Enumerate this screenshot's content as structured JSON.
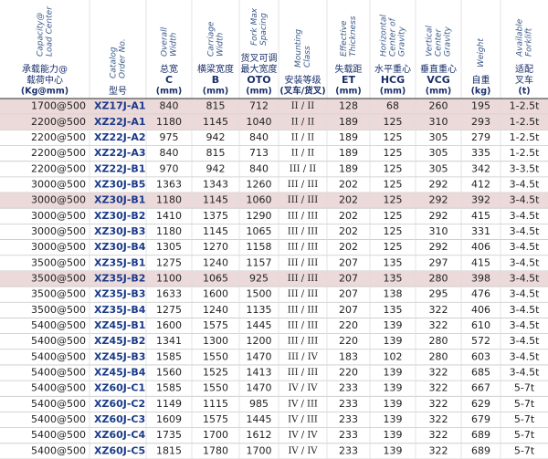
{
  "table": {
    "columns": [
      {
        "english": [
          "Capacity@",
          "Load Center"
        ],
        "chinese": [
          "承载能力@",
          "载荷中心"
        ],
        "unit": "(Kg@mm)"
      },
      {
        "english": [
          "Catalog",
          "Order No."
        ],
        "chinese": [
          "型号"
        ]
      },
      {
        "english": [
          "Overall",
          "Width"
        ],
        "chinese": [
          "总宽"
        ],
        "code": "C",
        "unit": "(mm)"
      },
      {
        "english": [
          "Carriage",
          "Width"
        ],
        "chinese": [
          "横梁宽度"
        ],
        "code": "B",
        "unit": "(mm)"
      },
      {
        "english": [
          "Fork Max",
          "Spacing"
        ],
        "chinese": [
          "货叉可调",
          "最大宽度"
        ],
        "code": "OTO",
        "unit": "(mm)"
      },
      {
        "english": [
          "Mounting",
          "Class"
        ],
        "chinese": [
          "安装等级"
        ],
        "unit": "(叉车/货叉)"
      },
      {
        "english": [
          "Effective",
          "Thickness"
        ],
        "chinese": [
          "失载距"
        ],
        "code": "ET",
        "unit": "(mm)"
      },
      {
        "english": [
          "Horizontal",
          "Center of",
          "Gravity"
        ],
        "chinese": [
          "水平重心"
        ],
        "code": "HCG",
        "unit": "(mm)"
      },
      {
        "english": [
          "Vertical",
          "Center",
          "Gravity"
        ],
        "chinese": [
          "垂直重心"
        ],
        "code": "VCG",
        "unit": "(mm)"
      },
      {
        "english": [
          "Weight"
        ],
        "chinese": [
          "自重"
        ],
        "unit": "(kg)"
      },
      {
        "english": [
          "Available",
          "Forklift"
        ],
        "chinese": [
          "适配",
          "叉车"
        ],
        "unit": "(t)"
      }
    ],
    "rows": [
      {
        "highlight": true,
        "cells": [
          "1700@500",
          "XZ17J-A1",
          "840",
          "815",
          "712",
          "II / II",
          "128",
          "68",
          "260",
          "195",
          "1-2.5t"
        ]
      },
      {
        "highlight": true,
        "cells": [
          "2200@500",
          "XZ22J-A1",
          "1180",
          "1145",
          "1040",
          "II / II",
          "189",
          "125",
          "310",
          "293",
          "1-2.5t"
        ]
      },
      {
        "cells": [
          "2200@500",
          "XZ22J-A2",
          "975",
          "942",
          "840",
          "II / II",
          "189",
          "125",
          "305",
          "279",
          "1-2.5t"
        ]
      },
      {
        "cells": [
          "2200@500",
          "XZ22J-A3",
          "840",
          "815",
          "713",
          "II / II",
          "189",
          "125",
          "305",
          "335",
          "1-2.5t"
        ]
      },
      {
        "cells": [
          "2200@500",
          "XZ22J-B1",
          "970",
          "942",
          "840",
          "III / II",
          "189",
          "125",
          "305",
          "342",
          "3-3.5t"
        ]
      },
      {
        "cells": [
          "3000@500",
          "XZ30J-B5",
          "1363",
          "1343",
          "1260",
          "III / III",
          "202",
          "125",
          "292",
          "412",
          "3-4.5t"
        ]
      },
      {
        "highlight": true,
        "cells": [
          "3000@500",
          "XZ30J-B1",
          "1180",
          "1145",
          "1060",
          "III / III",
          "202",
          "125",
          "292",
          "392",
          "3-4.5t"
        ]
      },
      {
        "cells": [
          "3000@500",
          "XZ30J-B2",
          "1410",
          "1375",
          "1290",
          "III / III",
          "202",
          "125",
          "292",
          "415",
          "3-4.5t"
        ]
      },
      {
        "cells": [
          "3000@500",
          "XZ30J-B3",
          "1180",
          "1145",
          "1065",
          "III / III",
          "202",
          "125",
          "310",
          "331",
          "3-4.5t"
        ]
      },
      {
        "cells": [
          "3000@500",
          "XZ30J-B4",
          "1305",
          "1270",
          "1158",
          "III / III",
          "202",
          "125",
          "292",
          "406",
          "3-4.5t"
        ]
      },
      {
        "cells": [
          "3500@500",
          "XZ35J-B1",
          "1275",
          "1240",
          "1157",
          "III / III",
          "207",
          "135",
          "297",
          "415",
          "3-4.5t"
        ]
      },
      {
        "highlight": true,
        "cells": [
          "3500@500",
          "XZ35J-B2",
          "1100",
          "1065",
          "925",
          "III / III",
          "207",
          "135",
          "280",
          "398",
          "3-4.5t"
        ]
      },
      {
        "cells": [
          "3500@500",
          "XZ35J-B3",
          "1633",
          "1600",
          "1500",
          "III / III",
          "207",
          "138",
          "295",
          "476",
          "3-4.5t"
        ]
      },
      {
        "cells": [
          "3500@500",
          "XZ35J-B4",
          "1275",
          "1240",
          "1135",
          "III / III",
          "207",
          "135",
          "322",
          "406",
          "3-4.5t"
        ]
      },
      {
        "cells": [
          "5400@500",
          "XZ45J-B1",
          "1600",
          "1575",
          "1445",
          "III / III",
          "220",
          "139",
          "322",
          "610",
          "3-4.5t"
        ]
      },
      {
        "cells": [
          "5400@500",
          "XZ45J-B2",
          "1341",
          "1300",
          "1200",
          "III / III",
          "220",
          "139",
          "280",
          "572",
          "3-4.5t"
        ]
      },
      {
        "cells": [
          "5400@500",
          "XZ45J-B3",
          "1585",
          "1550",
          "1470",
          "III / IV",
          "183",
          "102",
          "280",
          "603",
          "3-4.5t"
        ]
      },
      {
        "cells": [
          "5400@500",
          "XZ45J-B4",
          "1560",
          "1525",
          "1413",
          "III / III",
          "220",
          "139",
          "322",
          "685",
          "3-4.5t"
        ]
      },
      {
        "cells": [
          "5400@500",
          "XZ60J-C1",
          "1585",
          "1550",
          "1470",
          "IV / IV",
          "233",
          "139",
          "322",
          "667",
          "5-7t"
        ]
      },
      {
        "cells": [
          "5400@500",
          "XZ60J-C2",
          "1149",
          "1115",
          "985",
          "IV / III",
          "233",
          "139",
          "322",
          "629",
          "5-7t"
        ]
      },
      {
        "cells": [
          "5400@500",
          "XZ60J-C3",
          "1609",
          "1575",
          "1445",
          "IV / III",
          "233",
          "139",
          "322",
          "679",
          "5-7t"
        ]
      },
      {
        "cells": [
          "5400@500",
          "XZ60J-C4",
          "1735",
          "1700",
          "1612",
          "IV / IV",
          "233",
          "139",
          "322",
          "689",
          "5-7t"
        ]
      },
      {
        "cells": [
          "5400@500",
          "XZ60J-C5",
          "1815",
          "1780",
          "1700",
          "IV / IV",
          "233",
          "139",
          "322",
          "689",
          "5-7t"
        ]
      }
    ]
  }
}
